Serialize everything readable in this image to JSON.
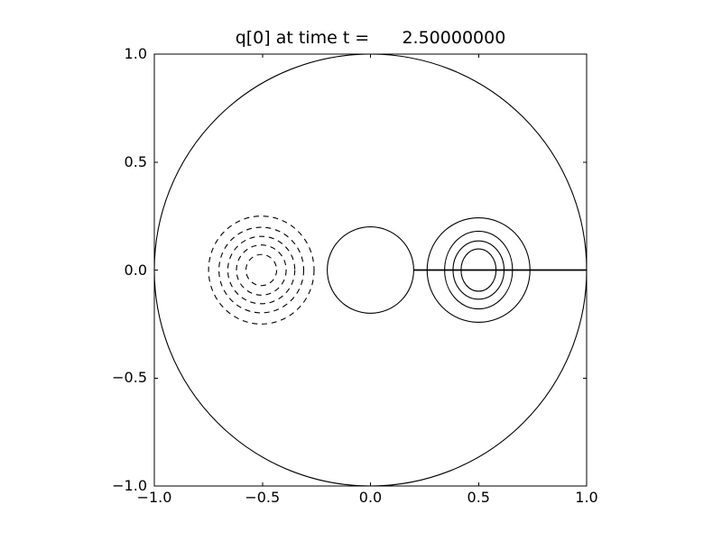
{
  "chart_data": {
    "type": "contour",
    "title": "q[0] at time t =      2.50000000",
    "time_value": "2.50000000",
    "xlim": [
      -1.0,
      1.0
    ],
    "ylim": [
      -1.0,
      1.0
    ],
    "xticks": [
      -1.0,
      -0.5,
      0.0,
      0.5,
      1.0
    ],
    "yticks": [
      -1.0,
      -0.5,
      0.0,
      0.5,
      1.0
    ],
    "xtick_labels": [
      "−1.0",
      "−0.5",
      "0.0",
      "0.5",
      "1.0"
    ],
    "ytick_labels": [
      "−1.0",
      "−0.5",
      "0.0",
      "0.5",
      "1.0"
    ],
    "grid": false,
    "legend": null,
    "line_color": "#000000",
    "background": "#ffffff",
    "tick_direction": "in",
    "features": {
      "outer_circle": {
        "cx": 0.0,
        "cy": 0.0,
        "r": 1.0,
        "style": "solid"
      },
      "inner_circle": {
        "cx": 0.0,
        "cy": 0.0,
        "r": 0.2,
        "style": "solid"
      },
      "radial_line": {
        "x1": 0.2,
        "y1": 0.0,
        "x2": 1.0,
        "y2": 0.0,
        "style": "solid"
      },
      "positive_contours": {
        "cx": 0.5,
        "cy": 0.0,
        "style": "solid",
        "rings": [
          {
            "rx": 0.238,
            "ry": 0.242
          },
          {
            "rx": 0.157,
            "ry": 0.18
          },
          {
            "rx": 0.118,
            "ry": 0.135
          },
          {
            "rx": 0.081,
            "ry": 0.098
          }
        ]
      },
      "negative_contours": {
        "cx": -0.505,
        "cy": 0.0,
        "style": "dashed",
        "rings": [
          {
            "rx": 0.244,
            "ry": 0.25
          },
          {
            "rx": 0.196,
            "ry": 0.198
          },
          {
            "rx": 0.155,
            "ry": 0.156
          },
          {
            "rx": 0.115,
            "ry": 0.116
          },
          {
            "rx": 0.071,
            "ry": 0.072
          }
        ]
      }
    }
  }
}
